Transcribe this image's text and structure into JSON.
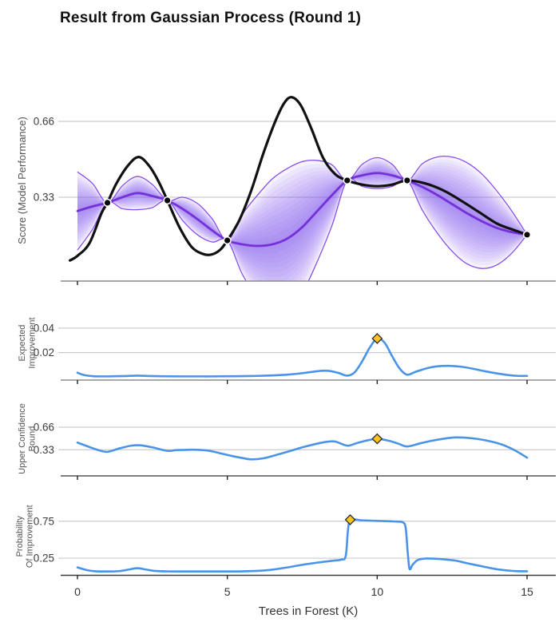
{
  "title": "Result from Gaussian Process (Round 1)",
  "colors": {
    "true_function": "#111111",
    "gp_mean": "#6b21d4",
    "gp_band": "#8b5cf6",
    "gp_envelope": "#7c3aed",
    "acquisition_line": "#4a94e8",
    "best_marker_fill": "#ffc220",
    "best_marker_stroke": "#2a2a2a",
    "observation_fill": "#0a0a0a",
    "gridline": "#cccccc"
  },
  "x_axis": {
    "title": "Trees in Forest (K)",
    "tick_labels": [
      "0",
      "5",
      "10",
      "15"
    ],
    "tick_values": [
      0,
      5,
      10,
      15
    ],
    "range": [
      0,
      15
    ]
  },
  "chart_data": [
    {
      "id": "gp",
      "type": "line",
      "ylabel_lines": [
        "Score (Model Performance)"
      ],
      "yticks": [
        {
          "v": 0.66,
          "label": "0.66"
        },
        {
          "v": 0.33,
          "label": "0.33"
        }
      ],
      "ylim": [
        -0.04,
        0.84
      ],
      "grid": true,
      "true_function": {
        "x": [
          -0.25,
          0,
          0.4,
          0.8,
          1,
          1.3,
          1.7,
          2.05,
          2.4,
          2.7,
          3,
          3.4,
          3.8,
          4.15,
          4.45,
          4.75,
          5,
          5.4,
          5.8,
          6.2,
          6.6,
          6.9,
          7.15,
          7.45,
          7.8,
          8.2,
          8.6,
          9,
          9.5,
          10,
          10.5,
          11,
          11.6,
          12.2,
          12.8,
          13.4,
          14,
          14.5,
          15
        ],
        "y": [
          0.055,
          0.075,
          0.13,
          0.26,
          0.306,
          0.39,
          0.47,
          0.505,
          0.465,
          0.4,
          0.316,
          0.2,
          0.115,
          0.085,
          0.08,
          0.1,
          0.142,
          0.23,
          0.36,
          0.52,
          0.66,
          0.74,
          0.765,
          0.73,
          0.63,
          0.5,
          0.43,
          0.403,
          0.385,
          0.378,
          0.385,
          0.403,
          0.39,
          0.36,
          0.315,
          0.265,
          0.215,
          0.19,
          0.167
        ]
      },
      "gp_mean": {
        "x": [
          0,
          0.5,
          1,
          1.5,
          2,
          2.5,
          3,
          3.5,
          4,
          4.5,
          5,
          5.5,
          6,
          6.5,
          7,
          7.5,
          8,
          8.5,
          9,
          9.5,
          10,
          10.5,
          11,
          11.5,
          12,
          12.5,
          13,
          13.5,
          14,
          14.5,
          15
        ],
        "y": [
          0.27,
          0.29,
          0.306,
          0.33,
          0.348,
          0.335,
          0.316,
          0.28,
          0.235,
          0.185,
          0.142,
          0.125,
          0.118,
          0.125,
          0.15,
          0.2,
          0.27,
          0.34,
          0.403,
          0.425,
          0.435,
          0.425,
          0.403,
          0.375,
          0.34,
          0.3,
          0.26,
          0.225,
          0.196,
          0.178,
          0.167
        ]
      },
      "gp_sigma": [
        0.17,
        0.1,
        0,
        0.05,
        0.072,
        0.05,
        0,
        0.05,
        0.068,
        0.05,
        0,
        0.13,
        0.22,
        0.285,
        0.305,
        0.285,
        0.22,
        0.13,
        0,
        0.048,
        0.067,
        0.048,
        0,
        0.1,
        0.165,
        0.205,
        0.22,
        0.205,
        0.16,
        0.09,
        0
      ],
      "observations": {
        "x": [
          1,
          3,
          5,
          9,
          11,
          15
        ],
        "y": [
          0.306,
          0.316,
          0.142,
          0.403,
          0.403,
          0.167
        ]
      }
    },
    {
      "id": "ei",
      "type": "line",
      "ylabel_lines": [
        "Expected",
        "Improvement"
      ],
      "yticks": [
        {
          "v": 0.04,
          "label": "0.04"
        },
        {
          "v": 0.02,
          "label": "0.02"
        }
      ],
      "ylim": [
        -0.003,
        0.058
      ],
      "grid": true,
      "curve": {
        "x": [
          0,
          0.2,
          0.5,
          0.8,
          1.2,
          1.6,
          2,
          2.4,
          2.8,
          3.5,
          4,
          4.5,
          5,
          5.5,
          6,
          6.5,
          7,
          7.5,
          8,
          8.35,
          8.7,
          9,
          9.25,
          9.5,
          9.75,
          10,
          10.25,
          10.5,
          10.75,
          11,
          11.3,
          11.7,
          12,
          12.4,
          12.8,
          13.2,
          13.6,
          14,
          14.4,
          14.7,
          15
        ],
        "y": [
          0.0036,
          0.0018,
          0.0008,
          0.0006,
          0.0007,
          0.0009,
          0.0012,
          0.0009,
          0.0007,
          0.0006,
          0.0006,
          0.0006,
          0.0007,
          0.0008,
          0.001,
          0.0014,
          0.002,
          0.0032,
          0.0048,
          0.0052,
          0.0035,
          0.0012,
          0.004,
          0.013,
          0.024,
          0.0315,
          0.028,
          0.017,
          0.007,
          0.002,
          0.0045,
          0.0075,
          0.0088,
          0.0092,
          0.0085,
          0.0068,
          0.0048,
          0.003,
          0.0016,
          0.001,
          0.001
        ]
      },
      "best_point": {
        "x": 10,
        "y": 0.0315
      }
    },
    {
      "id": "ucb",
      "type": "line",
      "ylabel_lines": [
        "Upper Confidence",
        "Bound"
      ],
      "yticks": [
        {
          "v": 0.66,
          "label": "0.66"
        },
        {
          "v": 0.33,
          "label": "0.33"
        }
      ],
      "ylim": [
        -0.05,
        1.05
      ],
      "grid": true,
      "curve": {
        "x": [
          0,
          0.4,
          0.7,
          1,
          1.4,
          1.8,
          2.1,
          2.5,
          3,
          3.3,
          3.7,
          4,
          4.4,
          4.8,
          5.2,
          5.5,
          5.8,
          6.2,
          6.6,
          7,
          7.5,
          8,
          8.3,
          8.6,
          9,
          9.3,
          9.6,
          10,
          10.4,
          10.7,
          11,
          11.4,
          11.8,
          12.2,
          12.6,
          13,
          13.4,
          13.8,
          14.2,
          14.6,
          15
        ],
        "y": [
          0.435,
          0.37,
          0.325,
          0.3,
          0.35,
          0.39,
          0.395,
          0.365,
          0.315,
          0.325,
          0.33,
          0.33,
          0.315,
          0.275,
          0.235,
          0.21,
          0.19,
          0.205,
          0.25,
          0.3,
          0.365,
          0.42,
          0.445,
          0.45,
          0.39,
          0.425,
          0.46,
          0.49,
          0.46,
          0.42,
          0.378,
          0.42,
          0.46,
          0.49,
          0.51,
          0.505,
          0.485,
          0.45,
          0.4,
          0.32,
          0.215
        ]
      },
      "best_point": {
        "x": 10,
        "y": 0.49
      }
    },
    {
      "id": "pi",
      "type": "line",
      "ylabel_lines": [
        "Probability",
        "Of Improvement"
      ],
      "yticks": [
        {
          "v": 0.75,
          "label": "0.75"
        },
        {
          "v": 0.25,
          "label": "0.25"
        }
      ],
      "ylim": [
        -0.02,
        1.05
      ],
      "grid": true,
      "curve": {
        "x": [
          0,
          0.3,
          0.6,
          1,
          1.4,
          1.7,
          2,
          2.3,
          2.6,
          3,
          3.5,
          4,
          4.5,
          5,
          5.5,
          6,
          6.5,
          7,
          7.5,
          8,
          8.5,
          8.8,
          8.95,
          9.03,
          9.12,
          9.45,
          9.8,
          10.2,
          10.6,
          10.85,
          10.95,
          11.02,
          11.08,
          11.18,
          11.35,
          11.6,
          11.9,
          12.2,
          12.6,
          13,
          13.5,
          14,
          14.4,
          14.7,
          15
        ],
        "y": [
          0.125,
          0.09,
          0.073,
          0.07,
          0.075,
          0.095,
          0.115,
          0.095,
          0.077,
          0.071,
          0.07,
          0.07,
          0.07,
          0.07,
          0.072,
          0.078,
          0.095,
          0.125,
          0.16,
          0.19,
          0.215,
          0.23,
          0.28,
          0.65,
          0.77,
          0.763,
          0.757,
          0.752,
          0.746,
          0.735,
          0.66,
          0.32,
          0.105,
          0.16,
          0.225,
          0.245,
          0.243,
          0.235,
          0.218,
          0.182,
          0.14,
          0.1,
          0.082,
          0.074,
          0.073
        ]
      },
      "best_point": {
        "x": 9.1,
        "y": 0.77
      }
    }
  ]
}
